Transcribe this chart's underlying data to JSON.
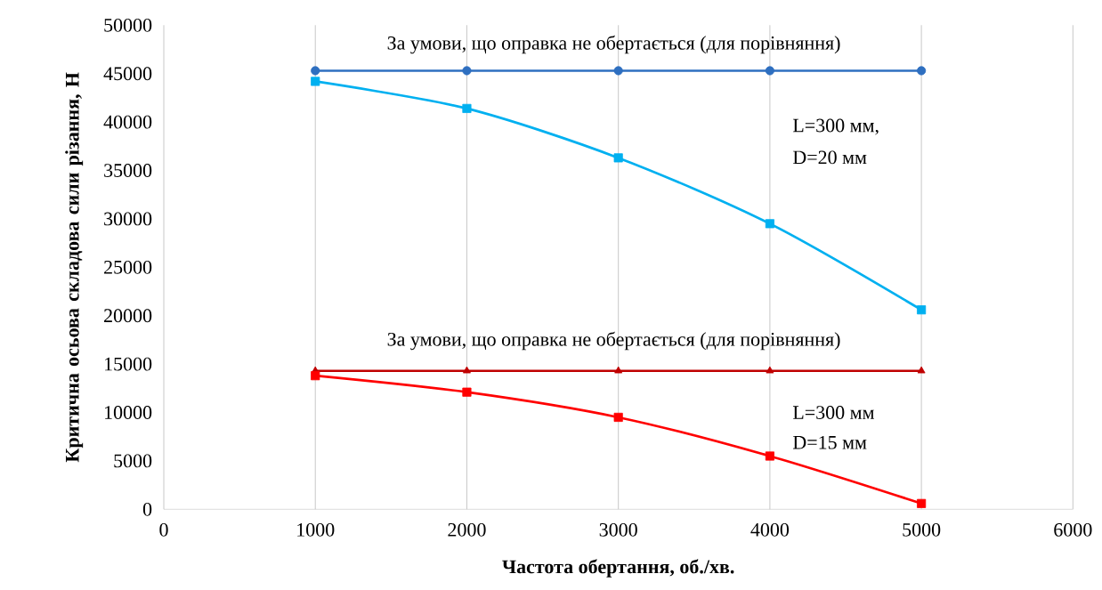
{
  "chart_data": {
    "type": "line",
    "xlabel": "Частота обертання, об./хв.",
    "ylabel": "Критична осьова складова сили різання, Н",
    "x": [
      1000,
      2000,
      3000,
      4000,
      5000
    ],
    "series": [
      {
        "color": "#2e6fc0",
        "marker": "circle",
        "values": [
          45300,
          45300,
          45300,
          45300,
          45300
        ]
      },
      {
        "color": "#00b0f0",
        "marker": "square",
        "values": [
          44200,
          41400,
          36300,
          29500,
          20600
        ]
      },
      {
        "color": "#c00000",
        "marker": "triangle",
        "values": [
          14300,
          14300,
          14300,
          14300,
          14300
        ]
      },
      {
        "color": "#ff0000",
        "marker": "square",
        "values": [
          13800,
          12100,
          9500,
          5500,
          600
        ]
      }
    ],
    "annotations": [
      "За умови, що оправка не обертається (для порівняння)",
      "L=300 мм,",
      "D=20 мм",
      "За умови, що оправка не обертається (для порівняння)",
      "L=300 мм",
      "D=15 мм"
    ],
    "xlim": [
      0,
      6000
    ],
    "ylim": [
      0,
      50000
    ],
    "xticks": [
      0,
      1000,
      2000,
      3000,
      4000,
      5000,
      6000
    ],
    "yticks": [
      0,
      5000,
      10000,
      15000,
      20000,
      25000,
      30000,
      35000,
      40000,
      45000,
      50000
    ],
    "grid": "x"
  }
}
